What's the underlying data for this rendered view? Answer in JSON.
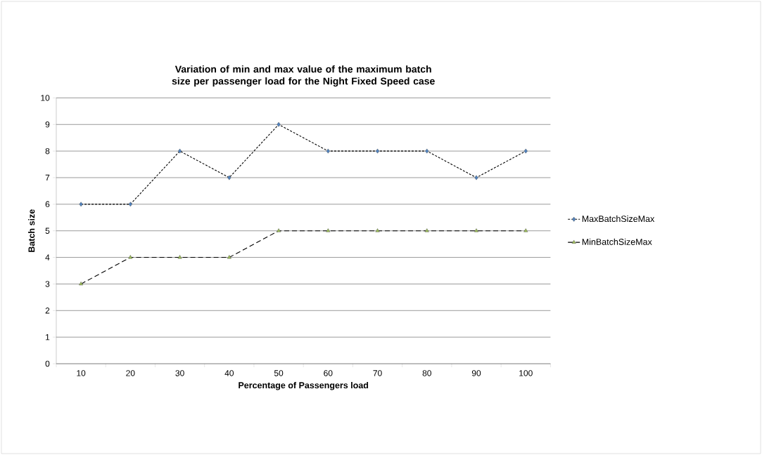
{
  "chart_data": {
    "type": "line",
    "title": "Variation of min and max value of the maximum batch size per passenger load for the Night Fixed Speed case",
    "xlabel": "Percentage of Passengers load",
    "ylabel": "Batch size",
    "categories": [
      "10",
      "20",
      "30",
      "40",
      "50",
      "60",
      "70",
      "80",
      "90",
      "100"
    ],
    "series": [
      {
        "name": "MaxBatchSizeMax",
        "color": "#4f81bd",
        "marker": "diamond",
        "line_style": "dotted",
        "values": [
          6,
          6,
          8,
          7,
          9,
          8,
          8,
          8,
          7,
          8
        ]
      },
      {
        "name": "MinBatchSizeMax",
        "color": "#9bbb59",
        "marker": "triangle",
        "line_style": "dashed",
        "values": [
          3,
          4,
          4,
          4,
          5,
          5,
          5,
          5,
          5,
          5
        ]
      }
    ],
    "ylim": [
      0,
      10
    ],
    "yticks": [
      0,
      1,
      2,
      3,
      4,
      5,
      6,
      7,
      8,
      9,
      10
    ],
    "grid": "y",
    "legend": "right"
  }
}
